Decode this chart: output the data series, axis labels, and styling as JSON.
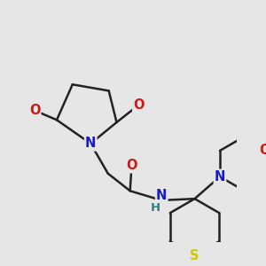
{
  "bg_color": "#e6e6e6",
  "bond_color": "#222222",
  "bond_width": 1.8,
  "atom_colors": {
    "N": "#1a1acc",
    "O": "#cc1a1a",
    "S": "#cccc00",
    "H": "#2a8080",
    "C": "#222222"
  },
  "font_size": 10.5,
  "font_size_H": 9.5
}
